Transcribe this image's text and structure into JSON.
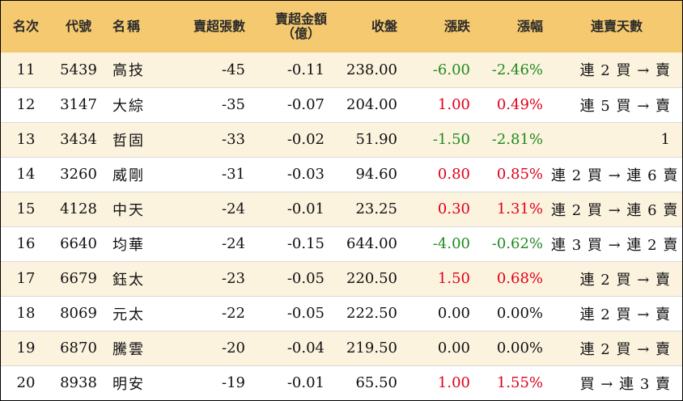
{
  "headers": {
    "rank": "名次",
    "code": "代號",
    "name": "名稱",
    "net_sell_lots": "賣超張數",
    "net_sell_amount_line1": "賣超金額",
    "net_sell_amount_line2": "（億）",
    "close": "收盤",
    "change": "漲跌",
    "change_pct": "漲幅",
    "streak": "連賣天數"
  },
  "rows": [
    {
      "rank": "11",
      "code": "5439",
      "name": "高技",
      "lots": "-45",
      "amount": "-0.11",
      "close": "238.00",
      "change": "-6.00",
      "pct": "-2.46%",
      "trend": "down",
      "streak": "連 2 買 → 賣"
    },
    {
      "rank": "12",
      "code": "3147",
      "name": "大綜",
      "lots": "-35",
      "amount": "-0.07",
      "close": "204.00",
      "change": "1.00",
      "pct": "0.49%",
      "trend": "up",
      "streak": "連 5 買 → 賣"
    },
    {
      "rank": "13",
      "code": "3434",
      "name": "哲固",
      "lots": "-33",
      "amount": "-0.02",
      "close": "51.90",
      "change": "-1.50",
      "pct": "-2.81%",
      "trend": "down",
      "streak": "1"
    },
    {
      "rank": "14",
      "code": "3260",
      "name": "威剛",
      "lots": "-31",
      "amount": "-0.03",
      "close": "94.60",
      "change": "0.80",
      "pct": "0.85%",
      "trend": "up",
      "streak": "連 2 買 → 連 6 賣"
    },
    {
      "rank": "15",
      "code": "4128",
      "name": "中天",
      "lots": "-24",
      "amount": "-0.01",
      "close": "23.25",
      "change": "0.30",
      "pct": "1.31%",
      "trend": "up",
      "streak": "連 2 買 → 連 6 賣"
    },
    {
      "rank": "16",
      "code": "6640",
      "name": "均華",
      "lots": "-24",
      "amount": "-0.15",
      "close": "644.00",
      "change": "-4.00",
      "pct": "-0.62%",
      "trend": "down",
      "streak": "連 3 買 → 連 2 賣"
    },
    {
      "rank": "17",
      "code": "6679",
      "name": "鈺太",
      "lots": "-23",
      "amount": "-0.05",
      "close": "220.50",
      "change": "1.50",
      "pct": "0.68%",
      "trend": "up",
      "streak": "連 2 買 → 賣"
    },
    {
      "rank": "18",
      "code": "8069",
      "name": "元太",
      "lots": "-22",
      "amount": "-0.05",
      "close": "222.50",
      "change": "0.00",
      "pct": "0.00%",
      "trend": "flat",
      "streak": "連 2 買 → 賣"
    },
    {
      "rank": "19",
      "code": "6870",
      "name": "騰雲",
      "lots": "-20",
      "amount": "-0.04",
      "close": "219.50",
      "change": "0.00",
      "pct": "0.00%",
      "trend": "flat",
      "streak": "連 2 買 → 賣"
    },
    {
      "rank": "20",
      "code": "8938",
      "name": "明安",
      "lots": "-19",
      "amount": "-0.01",
      "close": "65.50",
      "change": "1.00",
      "pct": "1.55%",
      "trend": "up",
      "streak": "買 → 連 3 賣"
    }
  ],
  "colors": {
    "header_bg": "#f5c96f",
    "odd_row_bg": "#fcf3df",
    "up": "#e0001b",
    "down": "#1f8a1f"
  }
}
